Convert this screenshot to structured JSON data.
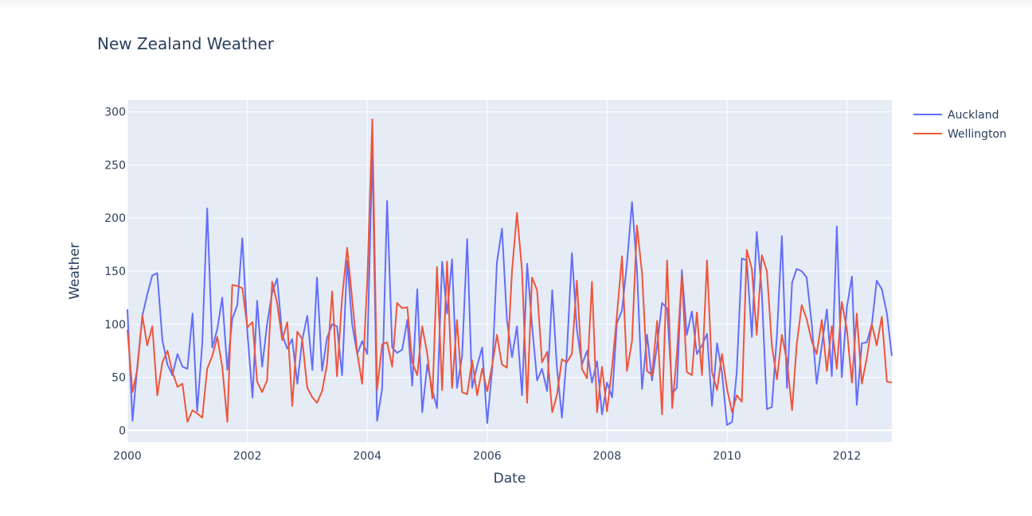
{
  "chart_data": {
    "type": "line",
    "title": "New Zealand Weather",
    "xlabel": "Date",
    "ylabel": "Weather",
    "xlim": [
      "2000-01-01",
      "2012-10-01"
    ],
    "ylim": [
      -11,
      311
    ],
    "xticks": [
      "2000",
      "2002",
      "2004",
      "2006",
      "2008",
      "2010",
      "2012"
    ],
    "yticks": [
      0,
      50,
      100,
      150,
      200,
      250,
      300
    ],
    "grid": true,
    "legend_position": "top-right",
    "x": [
      "2000-01",
      "2000-02",
      "2000-03",
      "2000-04",
      "2000-05",
      "2000-06",
      "2000-07",
      "2000-08",
      "2000-09",
      "2000-10",
      "2000-11",
      "2000-12",
      "2001-01",
      "2001-02",
      "2001-03",
      "2001-04",
      "2001-05",
      "2001-06",
      "2001-07",
      "2001-08",
      "2001-09",
      "2001-10",
      "2001-11",
      "2001-12",
      "2002-01",
      "2002-02",
      "2002-03",
      "2002-04",
      "2002-05",
      "2002-06",
      "2002-07",
      "2002-08",
      "2002-09",
      "2002-10",
      "2002-11",
      "2002-12",
      "2003-01",
      "2003-02",
      "2003-03",
      "2003-04",
      "2003-05",
      "2003-06",
      "2003-07",
      "2003-08",
      "2003-09",
      "2003-10",
      "2003-11",
      "2003-12",
      "2004-01",
      "2004-02",
      "2004-03",
      "2004-04",
      "2004-05",
      "2004-06",
      "2004-07",
      "2004-08",
      "2004-09",
      "2004-10",
      "2004-11",
      "2004-12",
      "2005-01",
      "2005-02",
      "2005-03",
      "2005-04",
      "2005-05",
      "2005-06",
      "2005-07",
      "2005-08",
      "2005-09",
      "2005-10",
      "2005-11",
      "2005-12",
      "2006-01",
      "2006-02",
      "2006-03",
      "2006-04",
      "2006-05",
      "2006-06",
      "2006-07",
      "2006-08",
      "2006-09",
      "2006-10",
      "2006-11",
      "2006-12",
      "2007-01",
      "2007-02",
      "2007-03",
      "2007-04",
      "2007-05",
      "2007-06",
      "2007-07",
      "2007-08",
      "2007-09",
      "2007-10",
      "2007-11",
      "2007-12",
      "2008-01",
      "2008-02",
      "2008-03",
      "2008-04",
      "2008-05",
      "2008-06",
      "2008-07",
      "2008-08",
      "2008-09",
      "2008-10",
      "2008-11",
      "2008-12",
      "2009-01",
      "2009-02",
      "2009-03",
      "2009-04",
      "2009-05",
      "2009-06",
      "2009-07",
      "2009-08",
      "2009-09",
      "2009-10",
      "2009-11",
      "2009-12",
      "2010-01",
      "2010-02",
      "2010-03",
      "2010-04",
      "2010-05",
      "2010-06",
      "2010-07",
      "2010-08",
      "2010-09",
      "2010-10",
      "2010-11",
      "2010-12",
      "2011-01",
      "2011-02",
      "2011-03",
      "2011-04",
      "2011-05",
      "2011-06",
      "2011-07",
      "2011-08",
      "2011-09",
      "2011-10",
      "2011-11",
      "2011-12",
      "2012-01",
      "2012-02",
      "2012-03",
      "2012-04",
      "2012-05",
      "2012-06",
      "2012-07",
      "2012-08",
      "2012-09",
      "2012-10"
    ],
    "series": [
      {
        "name": "Auckland",
        "color": "#636efa",
        "values": [
          114,
          9,
          60,
          108,
          128,
          146,
          148,
          85,
          62,
          52,
          72,
          60,
          58,
          110,
          18,
          82,
          209,
          78,
          95,
          125,
          57,
          105,
          118,
          181,
          92,
          31,
          122,
          60,
          100,
          130,
          143,
          90,
          77,
          86,
          44,
          85,
          108,
          57,
          144,
          56,
          87,
          100,
          98,
          52,
          160,
          100,
          72,
          84,
          72,
          265,
          9,
          39,
          216,
          78,
          73,
          76,
          104,
          42,
          133,
          17,
          62,
          38,
          21,
          159,
          110,
          161,
          40,
          70,
          180,
          40,
          61,
          78,
          7,
          60,
          158,
          190,
          104,
          69,
          98,
          33,
          157,
          99,
          47,
          58,
          37,
          132,
          60,
          12,
          72,
          167,
          95,
          62,
          75,
          45,
          65,
          15,
          45,
          31,
          101,
          113,
          157,
          215,
          151,
          39,
          90,
          47,
          80,
          120,
          115,
          35,
          40,
          151,
          90,
          112,
          72,
          80,
          91,
          23,
          82,
          55,
          5,
          8,
          55,
          162,
          160,
          88,
          187,
          130,
          20,
          22,
          90,
          183,
          40,
          139,
          152,
          150,
          144,
          100,
          44,
          80,
          114,
          51,
          192,
          50,
          116,
          145,
          24,
          82,
          83,
          100,
          141,
          133,
          110,
          70
        ]
      },
      {
        "name": "Wellington",
        "color": "#ef553b",
        "values": [
          95,
          36,
          57,
          108,
          80,
          98,
          33,
          64,
          75,
          55,
          41,
          44,
          8,
          19,
          16,
          12,
          58,
          70,
          88,
          60,
          8,
          137,
          136,
          134,
          97,
          102,
          46,
          36,
          47,
          140,
          120,
          85,
          102,
          23,
          93,
          86,
          40,
          31,
          26,
          37,
          62,
          131,
          51,
          125,
          172,
          124,
          73,
          44,
          140,
          293,
          38,
          81,
          83,
          60,
          120,
          115,
          116,
          64,
          52,
          98,
          72,
          30,
          154,
          38,
          159,
          40,
          104,
          36,
          34,
          66,
          33,
          58,
          37,
          62,
          90,
          62,
          59,
          150,
          205,
          150,
          26,
          144,
          132,
          64,
          74,
          17,
          33,
          67,
          64,
          72,
          141,
          58,
          49,
          140,
          17,
          60,
          18,
          60,
          108,
          164,
          56,
          84,
          193,
          148,
          56,
          52,
          103,
          15,
          160,
          21,
          72,
          146,
          55,
          52,
          111,
          52,
          160,
          55,
          38,
          72,
          39,
          17,
          33,
          27,
          170,
          152,
          90,
          165,
          150,
          80,
          48,
          90,
          65,
          19,
          80,
          118,
          105,
          84,
          72,
          104,
          56,
          98,
          58,
          121,
          95,
          45,
          110,
          44,
          68,
          100,
          80,
          107,
          46,
          45
        ]
      }
    ]
  }
}
